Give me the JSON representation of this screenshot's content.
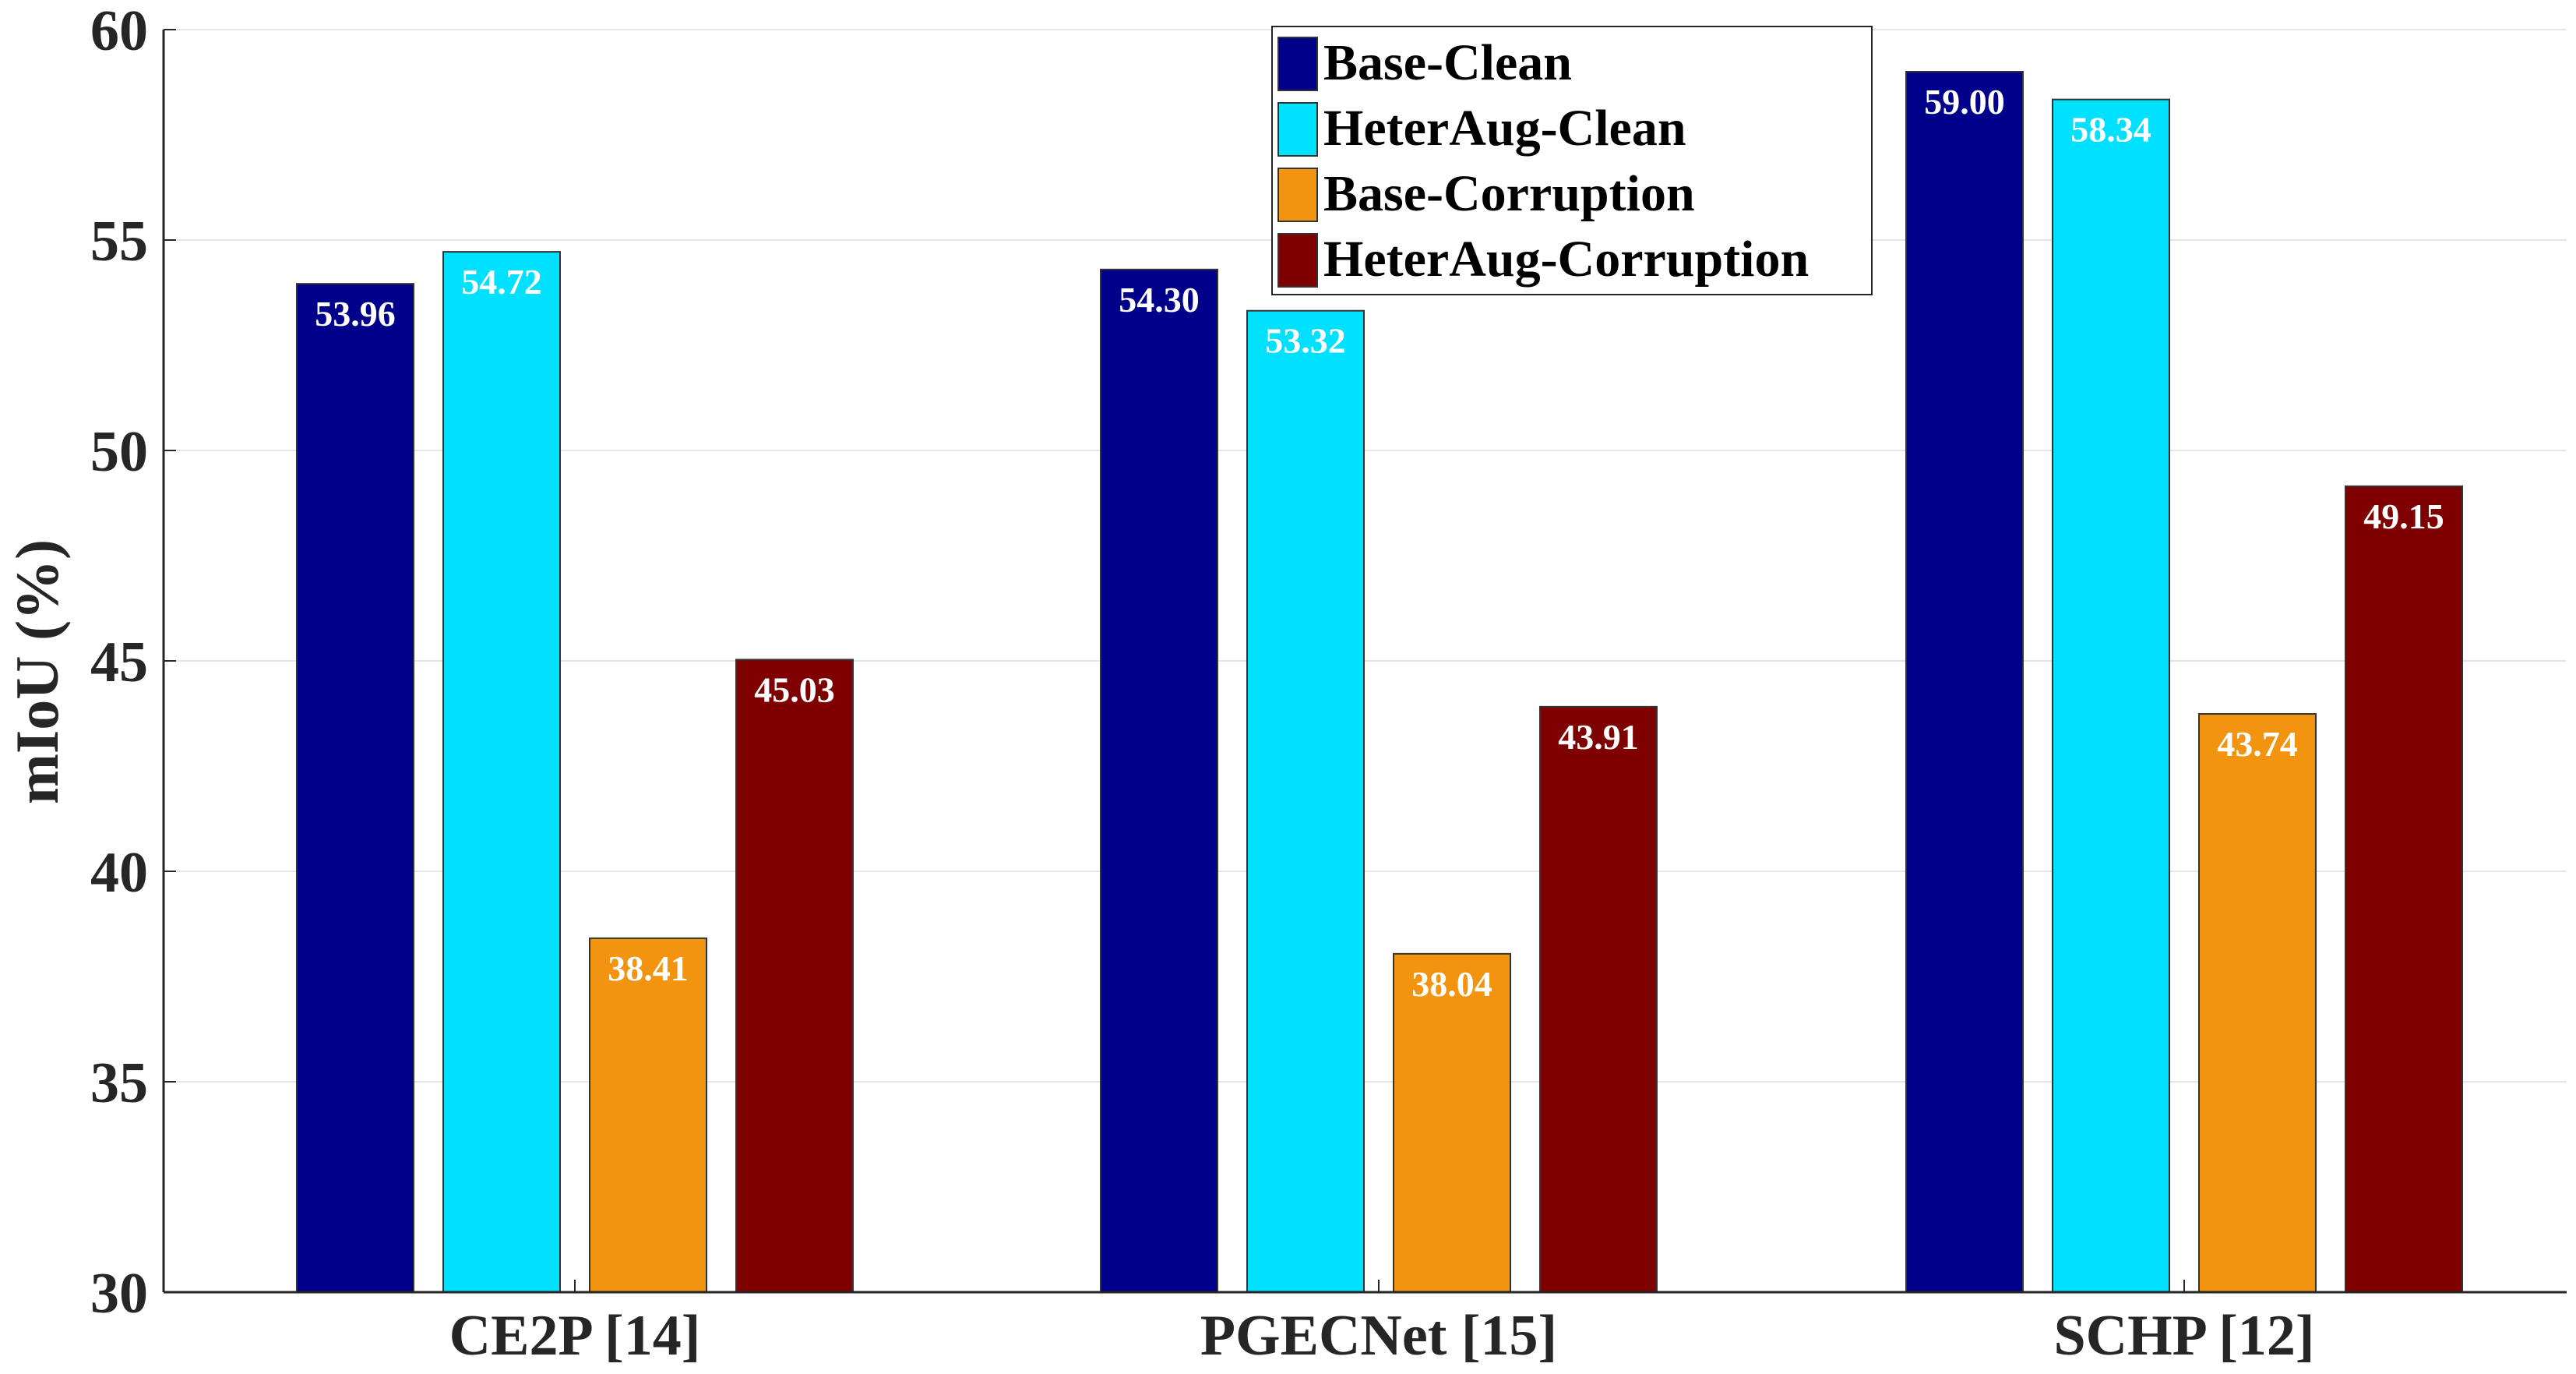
{
  "chart_data": {
    "type": "bar",
    "categories": [
      "CE2P [14]",
      "PGECNet [15]",
      "SCHP [12]"
    ],
    "series": [
      {
        "name": "Base-Clean",
        "color": "#00008b",
        "values": [
          53.96,
          54.3,
          59.0
        ],
        "labels": [
          "53.96",
          "54.30",
          "59.00"
        ]
      },
      {
        "name": "HeterAug-Clean",
        "color": "#00e0ff",
        "values": [
          54.72,
          53.32,
          58.34
        ],
        "labels": [
          "54.72",
          "53.32",
          "58.34"
        ]
      },
      {
        "name": "Base-Corruption",
        "color": "#f29410",
        "values": [
          38.41,
          38.04,
          43.74
        ],
        "labels": [
          "38.41",
          "38.04",
          "43.74"
        ]
      },
      {
        "name": "HeterAug-Corruption",
        "color": "#7f0000",
        "values": [
          45.03,
          43.91,
          49.15
        ],
        "labels": [
          "45.03",
          "43.91",
          "49.15"
        ]
      }
    ],
    "title": "",
    "xlabel": "",
    "ylabel": "mIoU (%)",
    "ylim": [
      30,
      60
    ],
    "yticks": [
      "30",
      "35",
      "40",
      "45",
      "50",
      "55",
      "60"
    ],
    "grid": true,
    "legend_position": "top-center"
  }
}
